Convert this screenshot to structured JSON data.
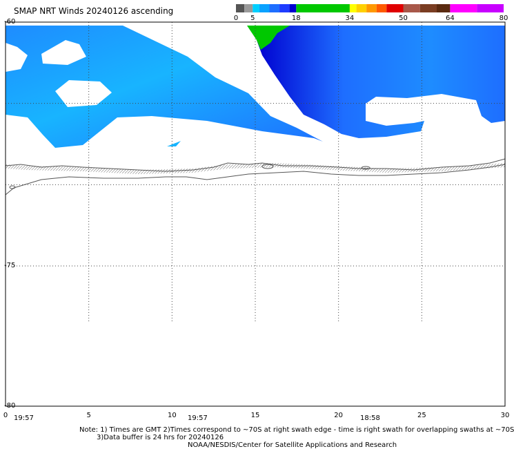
{
  "title": "SMAP NRT Winds 20240126 ascending",
  "colorbar": {
    "labels": [
      {
        "text": "0",
        "value": 0
      },
      {
        "text": "5",
        "value": 5
      },
      {
        "text": "18",
        "value": 18
      },
      {
        "text": "34",
        "value": 34
      },
      {
        "text": "50",
        "value": 50
      },
      {
        "text": "64",
        "value": 64
      },
      {
        "text": "80",
        "value": 80
      }
    ],
    "segments": [
      {
        "from": 0,
        "to": 2.5,
        "color": "#555555"
      },
      {
        "from": 2.5,
        "to": 5,
        "color": "#9a9a9a"
      },
      {
        "from": 5,
        "to": 7,
        "color": "#00cfff"
      },
      {
        "from": 7,
        "to": 10,
        "color": "#0aa2ff"
      },
      {
        "from": 10,
        "to": 13,
        "color": "#1e6eff"
      },
      {
        "from": 13,
        "to": 16,
        "color": "#1e3cff"
      },
      {
        "from": 16,
        "to": 18,
        "color": "#0000d0"
      },
      {
        "from": 18,
        "to": 34,
        "color": "#00c800"
      },
      {
        "from": 34,
        "to": 36,
        "color": "#ffff00"
      },
      {
        "from": 36,
        "to": 39,
        "color": "#ffd000"
      },
      {
        "from": 39,
        "to": 42,
        "color": "#ff9800"
      },
      {
        "from": 42,
        "to": 45,
        "color": "#ff5a00"
      },
      {
        "from": 45,
        "to": 50,
        "color": "#e00000"
      },
      {
        "from": 50,
        "to": 55,
        "color": "#a8584a"
      },
      {
        "from": 55,
        "to": 60,
        "color": "#7a3d22"
      },
      {
        "from": 60,
        "to": 64,
        "color": "#5a2a10"
      },
      {
        "from": 64,
        "to": 72,
        "color": "#ff00ff"
      },
      {
        "from": 72,
        "to": 80,
        "color": "#c800ff"
      }
    ]
  },
  "map": {
    "lat_range": [
      -80,
      -60
    ],
    "lon_range": [
      0,
      30
    ],
    "lat_labels": [
      {
        "text": "-60",
        "value": -60
      },
      {
        "text": "-75",
        "value": -75
      },
      {
        "text": "-80",
        "value": -80
      }
    ],
    "lon_labels": [
      {
        "text": "0",
        "value": 0
      },
      {
        "text": "5",
        "value": 5
      },
      {
        "text": "10",
        "value": 10
      },
      {
        "text": "15",
        "value": 15
      },
      {
        "text": "20",
        "value": 20
      },
      {
        "text": "25",
        "value": 25
      },
      {
        "text": "30",
        "value": 30
      }
    ],
    "swath_times": [
      "19:57",
      "19:57",
      "18:58"
    ],
    "colors": {
      "swath_light": "#18b4ff",
      "swath_mid": "#1e6eff",
      "swath_dark": "#1e3cff",
      "swath_deep": "#0000d0",
      "wind_green": "#00c800",
      "coast": "#555555"
    }
  },
  "notes": {
    "line1": "Note: 1) Times are GMT 2)Times correspond to ~70S at right swath edge - time is right swath for overlapping swaths at ~70S",
    "line2": "3)Data buffer is 24 hrs for 20240126",
    "line3": "NOAA/NESDIS/Center for Satellite Applications and Research"
  }
}
